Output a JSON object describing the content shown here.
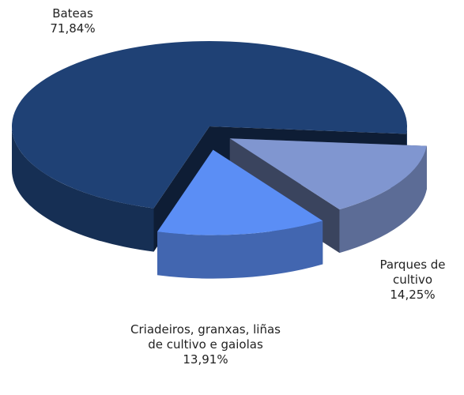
{
  "chart_data": {
    "type": "pie",
    "categories": [
      "Bateas",
      "Parques de cultivo",
      "Criadeiros, granxas, liñas de cultivo e gaiolas"
    ],
    "values": [
      71.84,
      14.25,
      13.91
    ],
    "value_labels": [
      "71,84%",
      "14,25%",
      "13,91%"
    ],
    "colors": [
      "#1f4175",
      "#8096d0",
      "#5b8ef5"
    ]
  }
}
